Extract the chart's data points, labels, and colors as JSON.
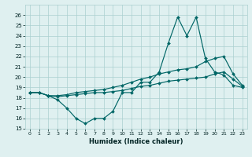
{
  "x": [
    0,
    1,
    2,
    3,
    4,
    5,
    6,
    7,
    8,
    9,
    10,
    11,
    12,
    13,
    14,
    15,
    16,
    17,
    18,
    19,
    20,
    21,
    22,
    23
  ],
  "line_volatile": [
    18.5,
    18.5,
    18.2,
    17.8,
    17.0,
    16.0,
    15.5,
    16.0,
    16.0,
    16.7,
    18.5,
    18.5,
    19.5,
    19.5,
    20.5,
    23.3,
    25.8,
    24.0,
    25.8,
    21.8,
    20.5,
    20.2,
    19.2,
    19.0
  ],
  "line_upper": [
    18.5,
    18.5,
    18.2,
    18.2,
    18.3,
    18.5,
    18.6,
    18.7,
    18.8,
    19.0,
    19.2,
    19.5,
    19.8,
    20.0,
    20.3,
    20.5,
    20.7,
    20.8,
    21.0,
    21.5,
    21.8,
    22.0,
    20.3,
    19.2
  ],
  "line_lower": [
    18.5,
    18.5,
    18.2,
    18.1,
    18.2,
    18.3,
    18.4,
    18.5,
    18.5,
    18.6,
    18.7,
    18.9,
    19.1,
    19.2,
    19.4,
    19.6,
    19.7,
    19.8,
    19.9,
    20.0,
    20.3,
    20.5,
    19.8,
    19.1
  ],
  "line_color": "#006666",
  "bg_color": "#dff0f0",
  "grid_color": "#aacfcf",
  "xlabel": "Humidex (Indice chaleur)",
  "xlim": [
    -0.5,
    23.5
  ],
  "ylim": [
    15,
    27
  ],
  "yticks": [
    15,
    16,
    17,
    18,
    19,
    20,
    21,
    22,
    23,
    24,
    25,
    26
  ],
  "xticks": [
    0,
    1,
    2,
    3,
    4,
    5,
    6,
    7,
    8,
    9,
    10,
    11,
    12,
    13,
    14,
    15,
    16,
    17,
    18,
    19,
    20,
    21,
    22,
    23
  ]
}
